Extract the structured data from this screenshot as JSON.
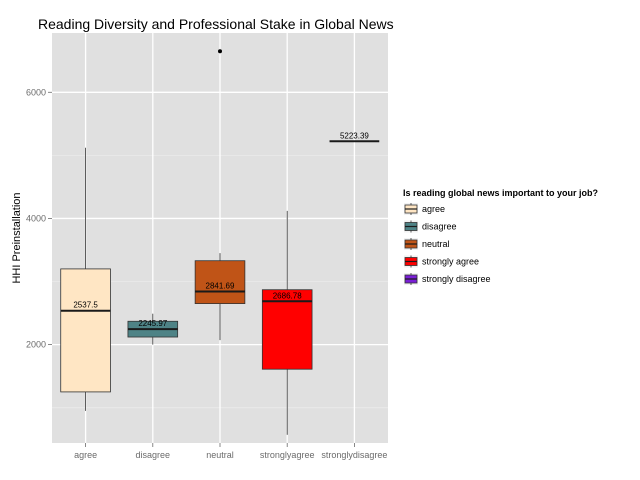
{
  "chart_data": {
    "type": "boxplot",
    "title": "Reading Diversity and Professional Stake in Global News",
    "xlabel": "",
    "ylabel": "HHI Preinstallation",
    "ylim": [
      440,
      6940
    ],
    "y_ticks": [
      2000,
      4000,
      6000
    ],
    "grid": true,
    "legend_placement": "right",
    "categories": [
      "agree",
      "disagree",
      "neutral",
      "stronglyagree",
      "stronglydisagree"
    ],
    "boxes": [
      {
        "category": "agree",
        "whisker_low": 950,
        "q1": 1250,
        "median": 2537.5,
        "q3": 3200,
        "whisker_high": 5120,
        "outliers": [],
        "label": "2537.5"
      },
      {
        "category": "disagree",
        "whisker_low": 2000,
        "q1": 2120,
        "median": 2245.97,
        "q3": 2370,
        "whisker_high": 2490,
        "outliers": [],
        "label": "2245.97"
      },
      {
        "category": "neutral",
        "whisker_low": 2070,
        "q1": 2650,
        "median": 2841.69,
        "q3": 3330,
        "whisker_high": 3450,
        "outliers": [
          6650
        ],
        "label": "2841.69"
      },
      {
        "category": "stronglyagree",
        "whisker_low": 570,
        "q1": 1610,
        "median": 2686.78,
        "q3": 2870,
        "whisker_high": 4120,
        "outliers": [],
        "label": "2686.78"
      },
      {
        "category": "stronglydisagree",
        "whisker_low": 5223.39,
        "q1": 5223.39,
        "median": 5223.39,
        "q3": 5223.39,
        "whisker_high": 5223.39,
        "outliers": [],
        "label": "5223.39"
      }
    ],
    "legend": {
      "title": "Is reading global news important to your job?",
      "entries": [
        {
          "label": "agree",
          "color": "#ffe6c4"
        },
        {
          "label": "disagree",
          "color": "#4e8386"
        },
        {
          "label": "neutral",
          "color": "#c05417"
        },
        {
          "label": "strongly agree",
          "color": "#ff0000"
        },
        {
          "label": "strongly disagree",
          "color": "#7a1fd6"
        }
      ]
    },
    "colors": {
      "panel_background": "#e0e0e0",
      "grid_major": "#ffffff",
      "grid_minor": "#ebebeb",
      "box_outline": "#333333"
    }
  }
}
